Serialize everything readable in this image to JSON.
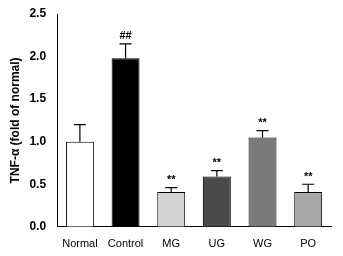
{
  "chart_data": {
    "type": "bar",
    "y_label": "TNF-α (fold of normal)",
    "categories": [
      "Normal",
      "Control",
      "MG",
      "UG",
      "WG",
      "PO"
    ],
    "values": [
      1.0,
      1.98,
      0.41,
      0.59,
      1.05,
      0.41
    ],
    "errors": [
      0.2,
      0.17,
      0.05,
      0.07,
      0.08,
      0.09
    ],
    "annotations": [
      null,
      "##",
      "**",
      "**",
      "**",
      "**"
    ],
    "colors": [
      "#ffffff",
      "#000000",
      "#d4d4d4",
      "#4a4a4a",
      "#7a7a7a",
      "#a8a8a8"
    ],
    "ylim": [
      0,
      2.5
    ],
    "yticks": [
      {
        "value": 0,
        "label": "0.0"
      },
      {
        "value": 0.5,
        "label": "0.5"
      },
      {
        "value": 1,
        "label": "1.0"
      },
      {
        "value": 1.5,
        "label": "1.5"
      },
      {
        "value": 2,
        "label": "2.0"
      },
      {
        "value": 2.5,
        "label": "2.5"
      }
    ],
    "grid": false
  }
}
